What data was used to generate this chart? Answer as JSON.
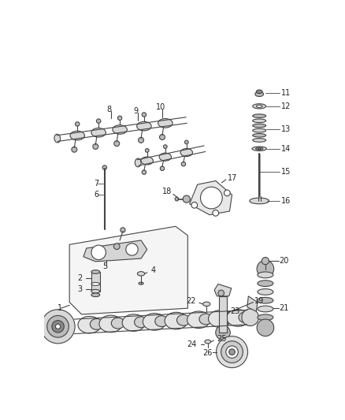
{
  "bg_color": "#ffffff",
  "line_color": "#444444",
  "text_color": "#222222",
  "fill_light": "#d8d8d8",
  "fill_mid": "#bbbbbb",
  "fill_dark": "#888888"
}
